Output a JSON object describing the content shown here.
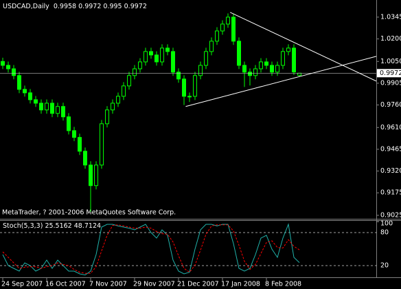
{
  "chart_data": [
    {
      "type": "candlestick",
      "title": "USDCAD,Daily",
      "color": "#00ff00",
      "categories": [
        "24 Sep 2007",
        null,
        null,
        null,
        null,
        null,
        null,
        null,
        "16 Oct 2007",
        null,
        null,
        null,
        null,
        null,
        null,
        null,
        "7 Nov 2007",
        null,
        null,
        null,
        null,
        null,
        null,
        null,
        "29 Nov 2007",
        null,
        null,
        null,
        null,
        null,
        null,
        null,
        "21 Dec 2007",
        null,
        null,
        null,
        null,
        null,
        null,
        null,
        "17 Jan 2008",
        null,
        null,
        null,
        null,
        null,
        null,
        null,
        "8 Feb 2008",
        null,
        null,
        null,
        null,
        null,
        null
      ],
      "open": [
        1.005,
        1.0024,
        1.0001,
        0.9956,
        0.9864,
        0.9841,
        0.9795,
        0.9772,
        0.9727,
        0.9772,
        0.9704,
        0.975,
        0.9681,
        0.9589,
        0.9544,
        0.9452,
        0.936,
        0.9223,
        0.936,
        0.9635,
        0.9727,
        0.9772,
        0.9818,
        0.9887,
        0.9956,
        1.0001,
        1.0047,
        1.0116,
        1.0093,
        1.0047,
        1.0139,
        1.0116,
        0.9979,
        0.9933,
        0.9818,
        0.9818,
        0.9956,
        1.0024,
        1.0116,
        1.0185,
        1.0253,
        1.0299,
        1.0345,
        1.0185,
        1.0024,
        0.9979,
        0.9956,
        1.0001,
        1.0047,
        1.0024,
        0.9979,
        1.0024,
        1.0116,
        1.0139,
        0.9958
      ],
      "high": [
        1.0075,
        1.0049,
        1.0026,
        0.9981,
        0.9889,
        0.9866,
        0.982,
        0.9797,
        0.9797,
        0.9797,
        0.9775,
        0.9775,
        0.9706,
        0.9614,
        0.9569,
        0.9477,
        0.9385,
        0.9385,
        0.966,
        0.9752,
        0.9797,
        0.9843,
        0.9912,
        0.9981,
        1.0026,
        1.0072,
        1.0141,
        1.0141,
        1.0118,
        1.0164,
        1.0164,
        1.0141,
        1.0004,
        0.9958,
        0.9843,
        0.9981,
        1.0049,
        1.0141,
        1.021,
        1.0278,
        1.0324,
        1.037,
        1.037,
        1.021,
        1.0049,
        1.0004,
        1.0026,
        1.0072,
        1.0072,
        1.0049,
        1.0049,
        1.0141,
        1.0164,
        1.0164,
        0.9972
      ],
      "low": [
        0.9999,
        0.9976,
        0.9931,
        0.9839,
        0.9816,
        0.977,
        0.9747,
        0.9702,
        0.9702,
        0.9679,
        0.9679,
        0.9656,
        0.9564,
        0.9519,
        0.9427,
        0.9335,
        0.9049,
        0.9198,
        0.9335,
        0.961,
        0.9702,
        0.9747,
        0.9793,
        0.9862,
        0.9931,
        0.9976,
        1.0022,
        1.0068,
        1.0022,
        1.0022,
        1.0091,
        0.9954,
        0.9908,
        0.976,
        0.978,
        0.9793,
        0.9931,
        0.9999,
        1.0091,
        1.016,
        1.0228,
        1.0274,
        1.016,
        0.9999,
        0.988,
        0.989,
        0.9931,
        0.9976,
        0.9999,
        0.9954,
        0.9954,
        0.9999,
        1.0091,
        0.996,
        0.995
      ],
      "close": [
        1.0024,
        1.0001,
        0.9956,
        0.9864,
        0.9841,
        0.9795,
        0.9772,
        0.9727,
        0.9772,
        0.9704,
        0.975,
        0.9681,
        0.9589,
        0.9544,
        0.9452,
        0.936,
        0.9223,
        0.936,
        0.9635,
        0.9727,
        0.9772,
        0.9818,
        0.9887,
        0.9956,
        1.0001,
        1.0047,
        1.0116,
        1.0093,
        1.0047,
        1.0139,
        1.0116,
        0.9979,
        0.9933,
        0.9818,
        0.9818,
        0.9956,
        1.0024,
        1.0116,
        1.0185,
        1.0253,
        1.0299,
        1.0345,
        1.0185,
        1.0024,
        0.9979,
        0.9956,
        1.0001,
        1.0047,
        1.0024,
        0.9979,
        1.0024,
        1.0116,
        1.0139,
        0.998,
        0.9972
      ],
      "ylim": [
        0.9011,
        1.045
      ],
      "yticks": [
        1.0345,
        {
          "value": 1.02,
          "label": "1.0200"
        },
        {
          "value": 1.005,
          "label": "1.0050"
        },
        0.9905,
        {
          "value": 0.976,
          "label": "0.9760"
        },
        {
          "value": 0.961,
          "label": "0.9610"
        },
        0.9465,
        {
          "value": 0.932,
          "label": "0.9320"
        },
        0.9175,
        0.9025
      ],
      "trendlines": [
        {
          "x": [
            41.4,
            68
          ],
          "y": [
            1.0377,
            0.9919
          ],
          "color": "#ffffff"
        },
        {
          "x": [
            33.3,
            68
          ],
          "y": [
            0.975,
            1.0084
          ],
          "color": "#ffffff"
        }
      ],
      "watermark": "MetaTrader, ? 2001-2006 MetaQuotes Software Corp."
    },
    {
      "type": "line",
      "title": "Stoch(5,3,3)",
      "series": [
        {
          "color": "#20b2aa",
          "values": [
            40,
            20,
            15,
            10,
            25,
            20,
            10,
            15,
            30,
            15,
            30,
            20,
            10,
            10,
            5,
            3,
            10,
            40,
            90,
            95,
            95,
            92,
            90,
            88,
            85,
            90,
            95,
            80,
            70,
            85,
            75,
            30,
            10,
            5,
            8,
            50,
            85,
            95,
            95,
            92,
            95,
            95,
            60,
            15,
            10,
            15,
            40,
            70,
            75,
            50,
            35,
            70,
            95,
            35,
            25.5162
          ]
        },
        {
          "color": "#ff0000",
          "dashed": true,
          "values": [
            45,
            35,
            25,
            15,
            17,
            18,
            18,
            15,
            18,
            20,
            25,
            22,
            20,
            13,
            8,
            6,
            6,
            18,
            47,
            75,
            93,
            94,
            92,
            90,
            88,
            88,
            90,
            88,
            82,
            78,
            77,
            63,
            38,
            15,
            8,
            21,
            48,
            77,
            92,
            94,
            94,
            94,
            83,
            57,
            28,
            13,
            22,
            42,
            62,
            65,
            53,
            52,
            67,
            55,
            48.7124
          ]
        }
      ],
      "ylim": [
        0,
        100
      ],
      "yticks": [
        100,
        80,
        20
      ]
    }
  ]
}
